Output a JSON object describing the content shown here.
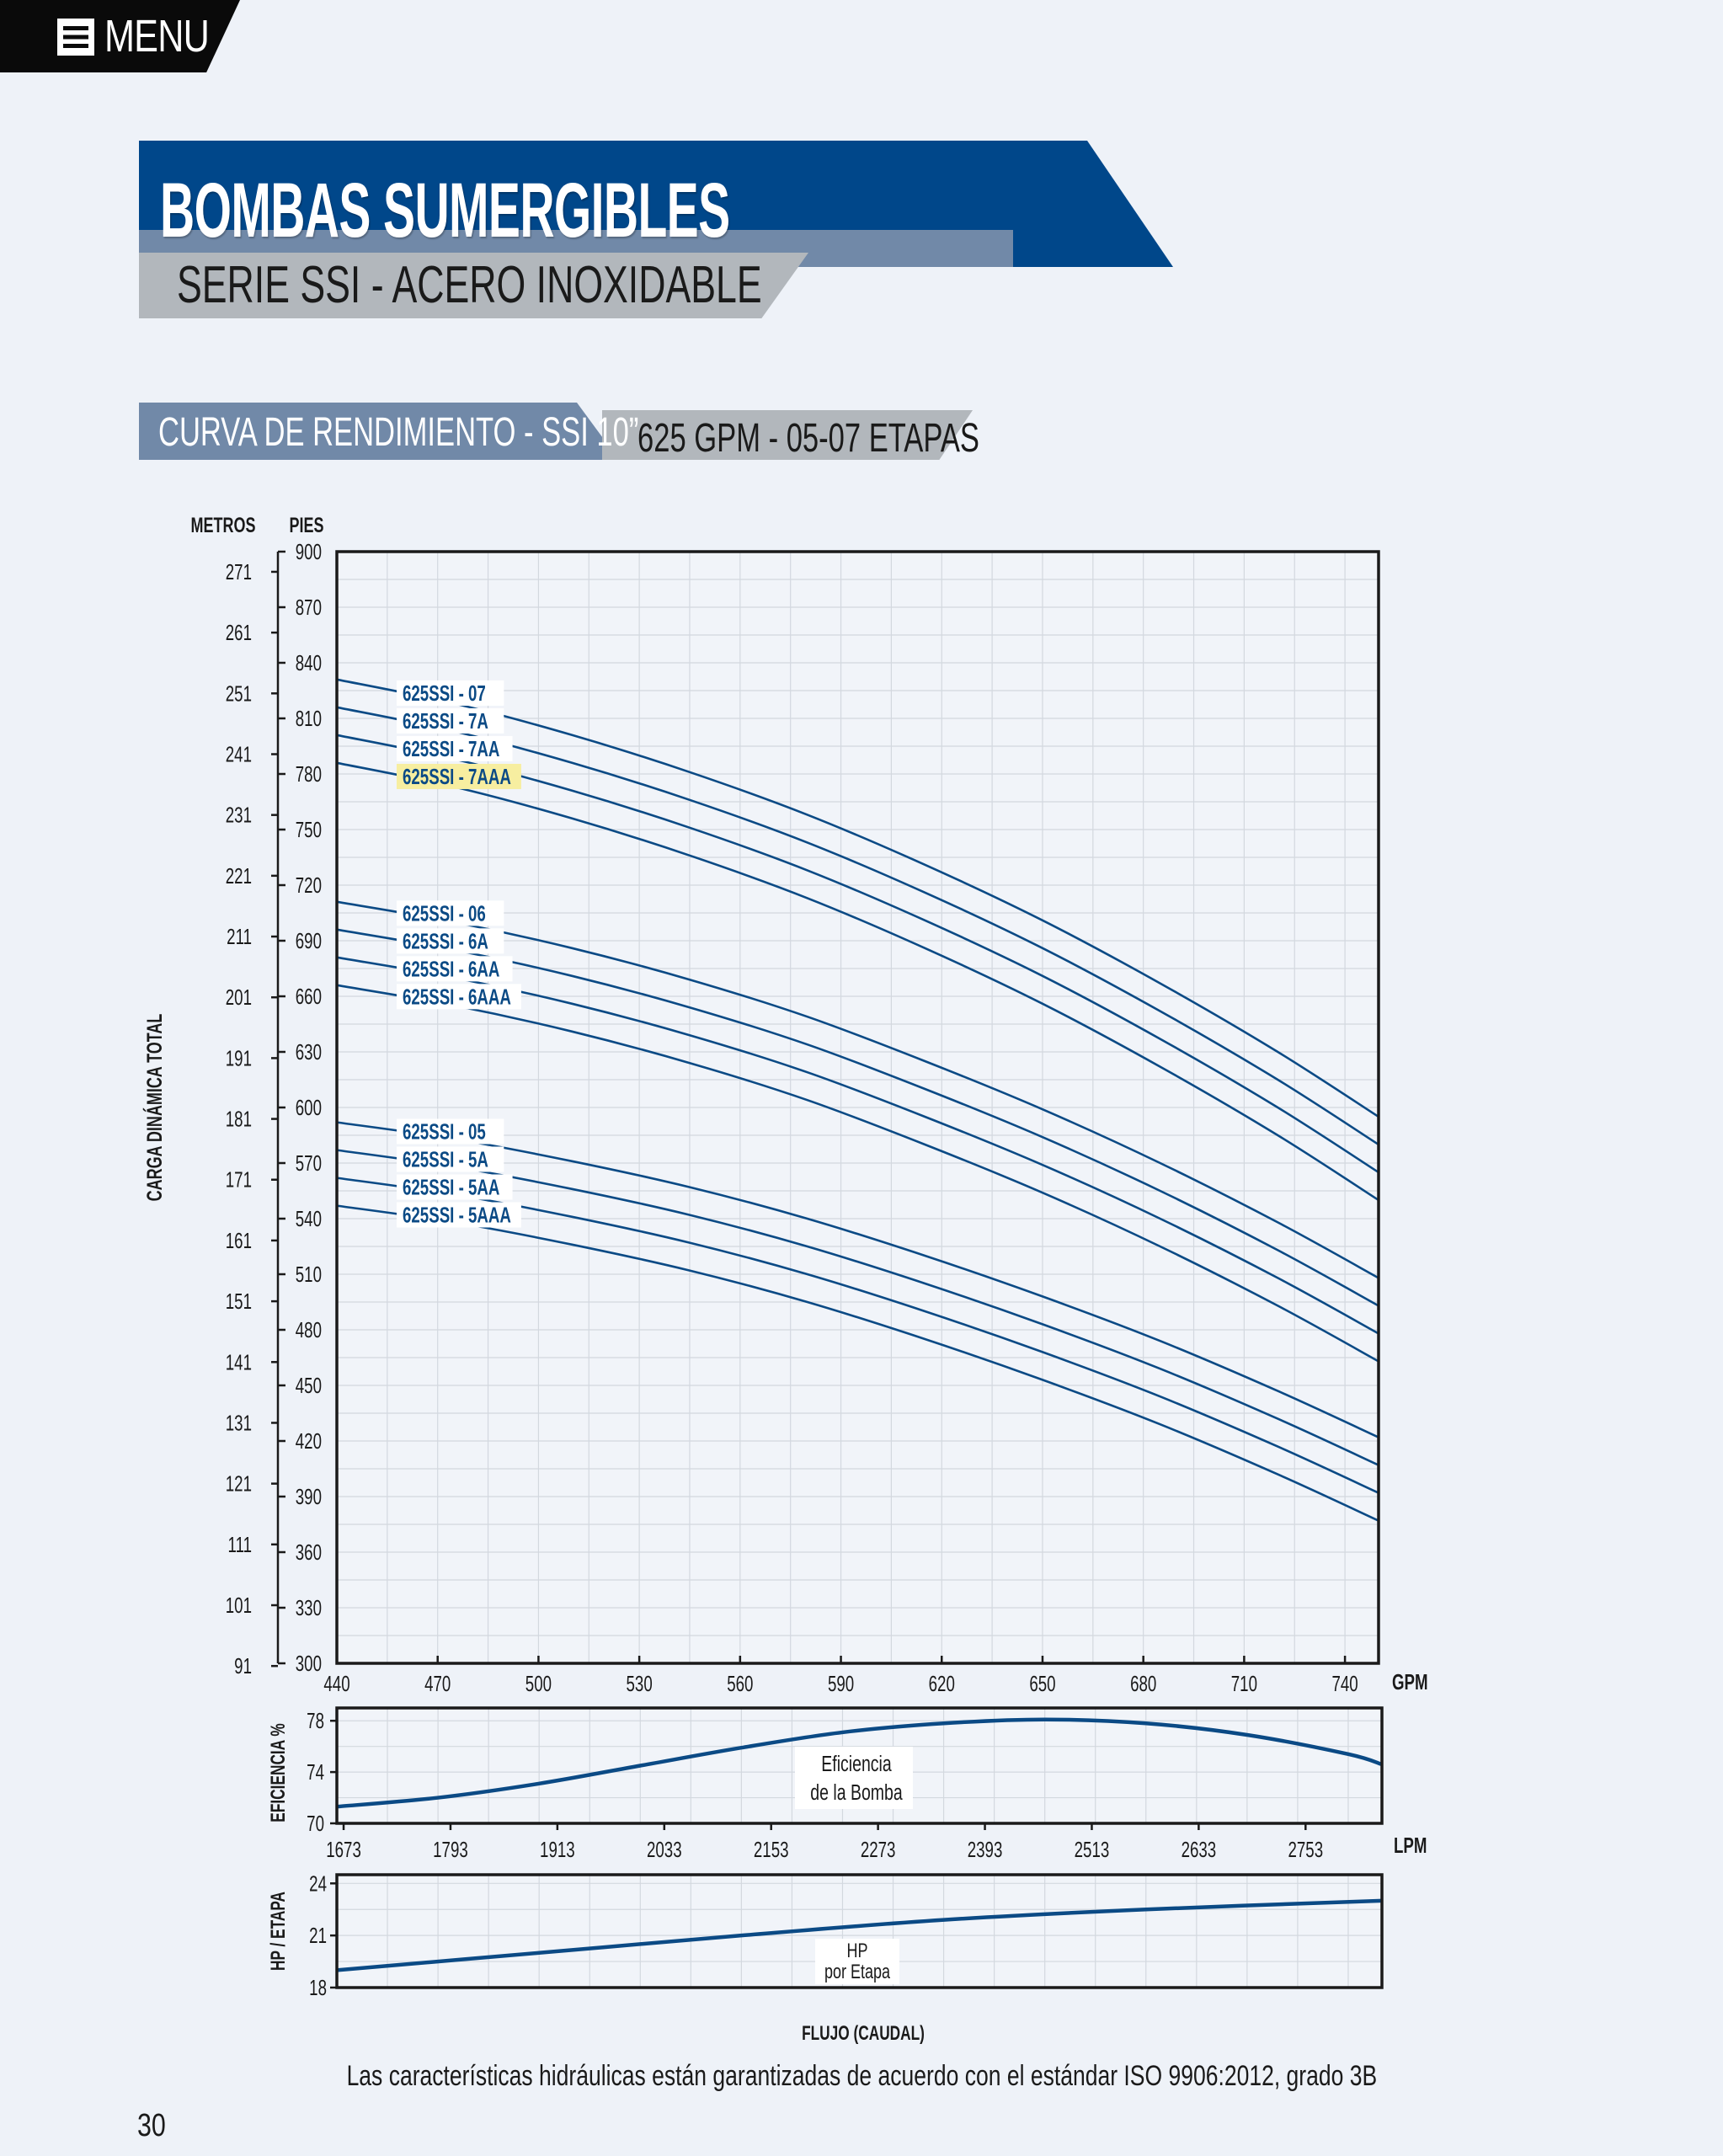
{
  "menu": {
    "label": "MENU",
    "icon": "hamburger-icon"
  },
  "header": {
    "title": "BOMBAS SUMERGIBLES",
    "subtitle": "SERIE SSI - ACERO INOXIDABLE",
    "section_left": "CURVA DE RENDIMIENTO - SSI 10”",
    "section_right": "625 GPM - 05-07 ETAPAS"
  },
  "colors": {
    "brand_blue": "#00478a",
    "steel": "#7189a8",
    "grey": "#b2b7bc",
    "curve": "#0b4a85",
    "highlight": "#f7eea0"
  },
  "footer": {
    "note": "Las características hidráulicas están garantizadas de acuerdo con el estándar ISO 9906:2012, grado 3B",
    "page": "30"
  },
  "chart_data": [
    {
      "type": "line",
      "ylabel": "CARGA DINÁMICA TOTAL",
      "y_unit_left": "METROS",
      "y_unit_right": "PIES",
      "x_unit": "GPM",
      "xlim": [
        440,
        750
      ],
      "ylim": [
        300,
        900
      ],
      "x_ticks": [
        440,
        470,
        500,
        530,
        560,
        590,
        620,
        650,
        680,
        710,
        740
      ],
      "y_ticks_ft": [
        300,
        330,
        360,
        390,
        420,
        450,
        480,
        510,
        540,
        570,
        600,
        630,
        660,
        690,
        720,
        750,
        780,
        810,
        840,
        870,
        900
      ],
      "y_ticks_m": [
        91,
        101,
        111,
        121,
        131,
        141,
        151,
        161,
        171,
        181,
        191,
        201,
        211,
        221,
        231,
        241,
        251,
        261,
        271
      ],
      "x": [
        440,
        475,
        510,
        545,
        580,
        615,
        650,
        685,
        720,
        750
      ],
      "series": [
        {
          "name": "625SSI - 07",
          "values": [
            831,
            818,
            801,
            781,
            758,
            731,
            701,
            667,
            630,
            595
          ]
        },
        {
          "name": "625SSI - 7A",
          "values": [
            816,
            803,
            786,
            766,
            743,
            716,
            686,
            652,
            615,
            580
          ]
        },
        {
          "name": "625SSI - 7AA",
          "values": [
            801,
            788,
            771,
            751,
            728,
            701,
            671,
            637,
            600,
            565
          ]
        },
        {
          "name": "625SSI - 7AAA",
          "values": [
            786,
            773,
            756,
            736,
            713,
            686,
            656,
            622,
            585,
            550
          ],
          "highlight": true
        },
        {
          "name": "625SSI - 06",
          "values": [
            711,
            700,
            686,
            669,
            649,
            625,
            599,
            570,
            538,
            508
          ]
        },
        {
          "name": "625SSI - 6A",
          "values": [
            696,
            685,
            671,
            654,
            634,
            610,
            584,
            555,
            523,
            493
          ]
        },
        {
          "name": "625SSI - 6AA",
          "values": [
            681,
            670,
            656,
            639,
            619,
            595,
            569,
            540,
            508,
            478
          ]
        },
        {
          "name": "625SSI - 6AAA",
          "values": [
            666,
            655,
            641,
            624,
            604,
            580,
            554,
            525,
            493,
            463
          ]
        },
        {
          "name": "625SSI - 05",
          "values": [
            592,
            583,
            571,
            557,
            540,
            520,
            498,
            474,
            447,
            422
          ]
        },
        {
          "name": "625SSI - 5A",
          "values": [
            577,
            568,
            556,
            542,
            525,
            505,
            483,
            459,
            432,
            407
          ]
        },
        {
          "name": "625SSI - 5AA",
          "values": [
            562,
            553,
            541,
            527,
            510,
            490,
            468,
            444,
            417,
            392
          ]
        },
        {
          "name": "625SSI - 5AAA",
          "values": [
            547,
            538,
            526,
            512,
            495,
            475,
            453,
            429,
            402,
            377
          ]
        }
      ]
    },
    {
      "type": "line",
      "ylabel": "EFICIENCIA %",
      "x_unit": "LPM",
      "label": "Eficiencia de la Bomba",
      "label_line1": "Eficiencia",
      "label_line2": "de la Bomba",
      "ylim": [
        70,
        79
      ],
      "y_ticks": [
        70,
        74,
        78
      ],
      "x_ticks": [
        1673,
        1793,
        1913,
        2033,
        2153,
        2273,
        2393,
        2513,
        2633,
        2753
      ],
      "x_gpm": [
        440,
        470,
        500,
        530,
        560,
        590,
        620,
        650,
        680,
        710,
        740,
        750
      ],
      "values": [
        71.3,
        72.0,
        73.1,
        74.5,
        75.9,
        77.1,
        77.8,
        78.1,
        77.8,
        76.9,
        75.4,
        74.6
      ]
    },
    {
      "type": "line",
      "ylabel": "HP / ETAPA",
      "label": "HP por Etapa",
      "label_line1": "HP",
      "label_line2": "por Etapa",
      "ylim": [
        18,
        24.5
      ],
      "y_ticks": [
        18,
        21,
        24
      ],
      "x_gpm": [
        440,
        500,
        560,
        620,
        680,
        750
      ],
      "values": [
        19.0,
        20.0,
        21.0,
        21.9,
        22.5,
        23.0
      ]
    }
  ]
}
